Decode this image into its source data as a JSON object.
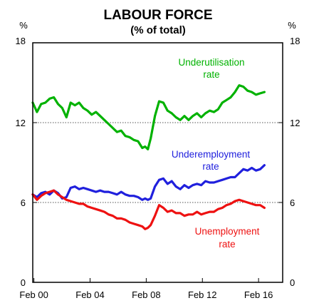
{
  "chart_data": {
    "type": "line",
    "title": "LABOUR FORCE",
    "subtitle": "(% of total)",
    "y_unit_left": "%",
    "y_unit_right": "%",
    "ylim": [
      0,
      18
    ],
    "yticks": [
      0,
      6,
      12,
      18
    ],
    "ytick_labels": [
      "0",
      "6",
      "12",
      "18"
    ],
    "x_range": [
      2000.0,
      2017.8
    ],
    "xticks": [
      2000.083,
      2004.083,
      2008.083,
      2012.083,
      2016.083
    ],
    "xtick_labels": [
      "Feb 00",
      "Feb 04",
      "Feb 08",
      "Feb 12",
      "Feb 16"
    ],
    "reference_lines": [
      6,
      12
    ],
    "series": [
      {
        "name": "Underutilisation rate",
        "label_lines": [
          "Underutilisation",
          "rate"
        ],
        "color": "#00b200",
        "points": [
          [
            2000.0,
            13.5
          ],
          [
            2000.3,
            12.8
          ],
          [
            2000.6,
            13.4
          ],
          [
            2000.9,
            13.5
          ],
          [
            2001.2,
            13.8
          ],
          [
            2001.5,
            13.9
          ],
          [
            2001.8,
            13.4
          ],
          [
            2002.1,
            13.1
          ],
          [
            2002.4,
            12.4
          ],
          [
            2002.7,
            13.5
          ],
          [
            2003.0,
            13.3
          ],
          [
            2003.3,
            13.5
          ],
          [
            2003.6,
            13.1
          ],
          [
            2003.9,
            12.9
          ],
          [
            2004.2,
            12.6
          ],
          [
            2004.5,
            12.8
          ],
          [
            2004.8,
            12.5
          ],
          [
            2005.1,
            12.2
          ],
          [
            2005.4,
            11.9
          ],
          [
            2005.7,
            11.6
          ],
          [
            2006.0,
            11.3
          ],
          [
            2006.3,
            11.4
          ],
          [
            2006.6,
            11.0
          ],
          [
            2006.9,
            10.9
          ],
          [
            2007.2,
            10.7
          ],
          [
            2007.5,
            10.6
          ],
          [
            2007.8,
            10.1
          ],
          [
            2008.0,
            10.2
          ],
          [
            2008.2,
            10.0
          ],
          [
            2008.4,
            10.8
          ],
          [
            2008.7,
            12.5
          ],
          [
            2009.0,
            13.6
          ],
          [
            2009.3,
            13.5
          ],
          [
            2009.6,
            12.9
          ],
          [
            2009.9,
            12.7
          ],
          [
            2010.2,
            12.4
          ],
          [
            2010.5,
            12.2
          ],
          [
            2010.8,
            12.5
          ],
          [
            2011.1,
            12.2
          ],
          [
            2011.4,
            12.5
          ],
          [
            2011.7,
            12.7
          ],
          [
            2012.0,
            12.4
          ],
          [
            2012.3,
            12.7
          ],
          [
            2012.6,
            12.9
          ],
          [
            2012.9,
            12.8
          ],
          [
            2013.2,
            13.0
          ],
          [
            2013.5,
            13.5
          ],
          [
            2013.8,
            13.7
          ],
          [
            2014.1,
            13.9
          ],
          [
            2014.4,
            14.3
          ],
          [
            2014.7,
            14.8
          ],
          [
            2015.0,
            14.7
          ],
          [
            2015.3,
            14.4
          ],
          [
            2015.6,
            14.3
          ],
          [
            2015.9,
            14.1
          ],
          [
            2016.2,
            14.2
          ],
          [
            2016.5,
            14.3
          ]
        ]
      },
      {
        "name": "Underemployment rate",
        "label_lines": [
          "Underemployment",
          "rate"
        ],
        "color": "#2020dd",
        "points": [
          [
            2000.0,
            6.6
          ],
          [
            2000.3,
            6.4
          ],
          [
            2000.6,
            6.7
          ],
          [
            2000.9,
            6.8
          ],
          [
            2001.2,
            6.6
          ],
          [
            2001.5,
            6.9
          ],
          [
            2001.8,
            6.7
          ],
          [
            2002.1,
            6.3
          ],
          [
            2002.4,
            6.4
          ],
          [
            2002.7,
            7.1
          ],
          [
            2003.0,
            7.2
          ],
          [
            2003.3,
            7.0
          ],
          [
            2003.6,
            7.1
          ],
          [
            2003.9,
            7.0
          ],
          [
            2004.2,
            6.9
          ],
          [
            2004.5,
            6.8
          ],
          [
            2004.8,
            6.9
          ],
          [
            2005.1,
            6.8
          ],
          [
            2005.4,
            6.8
          ],
          [
            2005.7,
            6.7
          ],
          [
            2006.0,
            6.6
          ],
          [
            2006.3,
            6.8
          ],
          [
            2006.6,
            6.6
          ],
          [
            2006.9,
            6.5
          ],
          [
            2007.2,
            6.5
          ],
          [
            2007.5,
            6.4
          ],
          [
            2007.8,
            6.2
          ],
          [
            2008.0,
            6.3
          ],
          [
            2008.2,
            6.2
          ],
          [
            2008.4,
            6.3
          ],
          [
            2008.7,
            7.2
          ],
          [
            2009.0,
            7.7
          ],
          [
            2009.3,
            7.8
          ],
          [
            2009.6,
            7.4
          ],
          [
            2009.9,
            7.6
          ],
          [
            2010.2,
            7.2
          ],
          [
            2010.5,
            7.0
          ],
          [
            2010.8,
            7.3
          ],
          [
            2011.1,
            7.1
          ],
          [
            2011.4,
            7.3
          ],
          [
            2011.7,
            7.4
          ],
          [
            2012.0,
            7.3
          ],
          [
            2012.3,
            7.6
          ],
          [
            2012.6,
            7.5
          ],
          [
            2012.9,
            7.5
          ],
          [
            2013.2,
            7.6
          ],
          [
            2013.5,
            7.7
          ],
          [
            2013.8,
            7.8
          ],
          [
            2014.1,
            7.9
          ],
          [
            2014.4,
            7.9
          ],
          [
            2014.7,
            8.2
          ],
          [
            2015.0,
            8.5
          ],
          [
            2015.3,
            8.4
          ],
          [
            2015.6,
            8.6
          ],
          [
            2015.9,
            8.4
          ],
          [
            2016.2,
            8.5
          ],
          [
            2016.5,
            8.8
          ]
        ]
      },
      {
        "name": "Unemployment rate",
        "label_lines": [
          "Unemployment",
          "rate"
        ],
        "color": "#ee1111",
        "points": [
          [
            2000.0,
            6.6
          ],
          [
            2000.3,
            6.2
          ],
          [
            2000.6,
            6.5
          ],
          [
            2000.9,
            6.7
          ],
          [
            2001.2,
            6.8
          ],
          [
            2001.5,
            6.9
          ],
          [
            2001.8,
            6.6
          ],
          [
            2002.1,
            6.4
          ],
          [
            2002.4,
            6.2
          ],
          [
            2002.7,
            6.1
          ],
          [
            2003.0,
            6.0
          ],
          [
            2003.3,
            5.9
          ],
          [
            2003.6,
            5.9
          ],
          [
            2003.9,
            5.7
          ],
          [
            2004.2,
            5.6
          ],
          [
            2004.5,
            5.5
          ],
          [
            2004.8,
            5.4
          ],
          [
            2005.1,
            5.3
          ],
          [
            2005.4,
            5.1
          ],
          [
            2005.7,
            5.0
          ],
          [
            2006.0,
            4.8
          ],
          [
            2006.3,
            4.8
          ],
          [
            2006.6,
            4.7
          ],
          [
            2006.9,
            4.5
          ],
          [
            2007.2,
            4.4
          ],
          [
            2007.5,
            4.3
          ],
          [
            2007.8,
            4.2
          ],
          [
            2008.0,
            4.0
          ],
          [
            2008.2,
            4.1
          ],
          [
            2008.4,
            4.3
          ],
          [
            2008.7,
            5.0
          ],
          [
            2009.0,
            5.8
          ],
          [
            2009.3,
            5.6
          ],
          [
            2009.6,
            5.3
          ],
          [
            2009.9,
            5.4
          ],
          [
            2010.2,
            5.2
          ],
          [
            2010.5,
            5.2
          ],
          [
            2010.8,
            5.0
          ],
          [
            2011.1,
            5.1
          ],
          [
            2011.4,
            5.1
          ],
          [
            2011.7,
            5.3
          ],
          [
            2012.0,
            5.1
          ],
          [
            2012.3,
            5.2
          ],
          [
            2012.6,
            5.3
          ],
          [
            2012.9,
            5.3
          ],
          [
            2013.2,
            5.5
          ],
          [
            2013.5,
            5.6
          ],
          [
            2013.8,
            5.8
          ],
          [
            2014.1,
            5.9
          ],
          [
            2014.4,
            6.1
          ],
          [
            2014.7,
            6.2
          ],
          [
            2015.0,
            6.1
          ],
          [
            2015.3,
            6.0
          ],
          [
            2015.6,
            5.9
          ],
          [
            2015.9,
            5.8
          ],
          [
            2016.2,
            5.8
          ],
          [
            2016.5,
            5.6
          ]
        ]
      }
    ]
  }
}
